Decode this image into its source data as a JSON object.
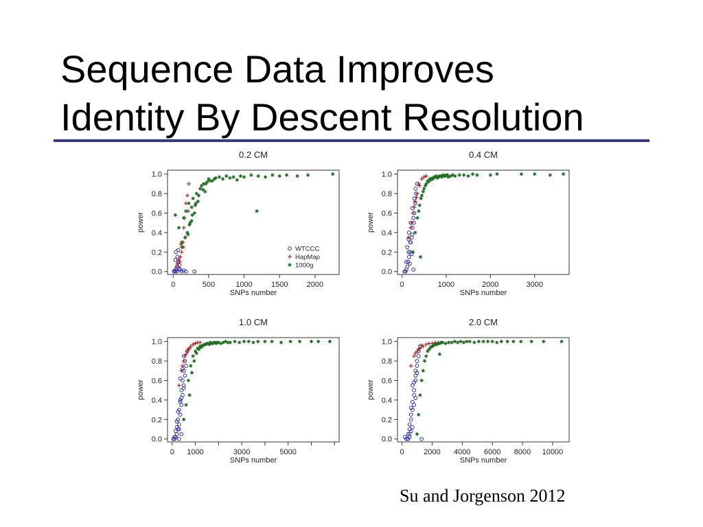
{
  "slide": {
    "title_lines": [
      "Sequence Data Improves",
      "Identity By Descent Resolution"
    ],
    "citation": "Su and Jorgenson 2012",
    "rule_color": "#343a8c"
  },
  "series_styles": {
    "WTCCC": {
      "marker": "circle",
      "color": "#2b2bb0"
    },
    "HapMap": {
      "marker": "plus",
      "color": "#a31a1a"
    },
    "1000g": {
      "marker": "star",
      "color": "#1f6b1f"
    }
  },
  "chart_data": [
    {
      "type": "scatter",
      "title": "0.2 CM",
      "xlabel": "SNPs number",
      "ylabel": "power",
      "xlim": [
        -80,
        2340
      ],
      "ylim": [
        -0.03,
        1.04
      ],
      "xticks": [
        0,
        500,
        1000,
        1500,
        2000
      ],
      "yticks": [
        0.0,
        0.2,
        0.4,
        0.6,
        0.8,
        1.0
      ],
      "yticklabels": [
        "0.0",
        "0.2",
        "0.4",
        "0.6",
        "0.8",
        "1.0"
      ],
      "grid": false,
      "legend": "bottom-right",
      "series": [
        {
          "name": "WTCCC",
          "x": [
            10,
            20,
            30,
            40,
            50,
            60,
            70,
            80,
            100,
            120,
            150,
            180,
            300,
            30,
            60,
            90,
            40,
            70
          ],
          "y": [
            0,
            0.01,
            0,
            0.02,
            0,
            0.05,
            0.1,
            0.03,
            0.02,
            0,
            0.01,
            0,
            0,
            0.12,
            0.15,
            0.07,
            0.2,
            0.22
          ]
        },
        {
          "name": "HapMap",
          "x": [
            40,
            60,
            80,
            100,
            120,
            140,
            150,
            160,
            180,
            200,
            220,
            120,
            170,
            210,
            90,
            110
          ],
          "y": [
            0.05,
            0.08,
            0.12,
            0.15,
            0.25,
            0.3,
            0.45,
            0.55,
            0.7,
            0.78,
            0.9,
            0.2,
            0.35,
            0.62,
            0.1,
            0.28
          ]
        },
        {
          "name": "1000g",
          "x": [
            30,
            80,
            120,
            150,
            180,
            200,
            220,
            240,
            260,
            280,
            300,
            330,
            350,
            380,
            400,
            430,
            450,
            480,
            500,
            550,
            600,
            650,
            700,
            750,
            800,
            850,
            900,
            950,
            1000,
            1100,
            1200,
            1300,
            1400,
            1500,
            1600,
            1750,
            1900,
            2250,
            1180,
            210,
            260,
            310,
            140,
            170,
            230,
            270,
            320,
            360,
            420,
            460,
            520,
            580
          ],
          "y": [
            0.58,
            0.45,
            0.3,
            0.55,
            0.62,
            0.4,
            0.7,
            0.5,
            0.66,
            0.75,
            0.6,
            0.8,
            0.72,
            0.85,
            0.88,
            0.9,
            0.82,
            0.92,
            0.95,
            0.93,
            0.96,
            0.97,
            0.95,
            0.98,
            0.96,
            0.97,
            0.94,
            0.98,
            0.97,
            0.99,
            0.98,
            0.97,
            0.99,
            0.98,
            0.99,
            0.98,
            0.99,
            1.0,
            0.62,
            0.38,
            0.52,
            0.68,
            0.25,
            0.35,
            0.48,
            0.58,
            0.7,
            0.78,
            0.84,
            0.9,
            0.93,
            0.95
          ]
        }
      ]
    },
    {
      "type": "scatter",
      "title": "0.4 CM",
      "xlabel": "SNPs number",
      "ylabel": "power",
      "xlim": [
        -100,
        3780
      ],
      "ylim": [
        -0.03,
        1.04
      ],
      "xticks": [
        0,
        1000,
        2000,
        3000
      ],
      "yticks": [
        0.0,
        0.2,
        0.4,
        0.6,
        0.8,
        1.0
      ],
      "yticklabels": [
        "0.0",
        "0.2",
        "0.4",
        "0.6",
        "0.8",
        "1.0"
      ],
      "grid": false,
      "series": [
        {
          "name": "WTCCC",
          "x": [
            60,
            80,
            100,
            120,
            140,
            160,
            180,
            200,
            220,
            240,
            260,
            280,
            300,
            320,
            340,
            120,
            160,
            200,
            240,
            280,
            100,
            150,
            190,
            230,
            270,
            310,
            180,
            220,
            260,
            150
          ],
          "y": [
            0,
            0,
            0.02,
            0.05,
            0.1,
            0.15,
            0.2,
            0.3,
            0.35,
            0.45,
            0.55,
            0.6,
            0.7,
            0.8,
            0.9,
            0.25,
            0.4,
            0.5,
            0.65,
            0.75,
            0.1,
            0.2,
            0.3,
            0.38,
            0.5,
            0.85,
            0.08,
            0.18,
            0.02,
            0.33
          ]
        },
        {
          "name": "HapMap",
          "x": [
            150,
            200,
            250,
            300,
            350,
            400,
            450,
            500,
            550,
            220,
            280,
            330,
            380
          ],
          "y": [
            0.35,
            0.45,
            0.6,
            0.72,
            0.8,
            0.88,
            0.95,
            0.97,
            0.98,
            0.5,
            0.66,
            0.76,
            0.9
          ]
        },
        {
          "name": "1000g",
          "x": [
            250,
            300,
            350,
            400,
            450,
            500,
            550,
            600,
            650,
            700,
            750,
            800,
            850,
            900,
            950,
            1000,
            1050,
            1100,
            1150,
            1200,
            1300,
            1400,
            1500,
            1600,
            1700,
            2000,
            2150,
            2700,
            3000,
            3350,
            3650,
            380,
            430,
            480,
            530,
            580,
            630,
            680,
            730,
            780,
            830,
            880,
            930,
            980,
            1030,
            420
          ],
          "y": [
            0.2,
            0.4,
            0.55,
            0.68,
            0.78,
            0.85,
            0.9,
            0.92,
            0.94,
            0.95,
            0.97,
            0.96,
            0.98,
            0.97,
            0.98,
            0.99,
            0.97,
            0.98,
            0.99,
            0.98,
            0.99,
            0.99,
            0.98,
            1.0,
            0.99,
            0.99,
            1.0,
            1.0,
            1.0,
            0.99,
            1.0,
            0.62,
            0.75,
            0.82,
            0.88,
            0.93,
            0.95,
            0.96,
            0.97,
            0.98,
            0.97,
            0.98,
            0.99,
            0.98,
            0.99,
            0.15
          ]
        }
      ]
    },
    {
      "type": "scatter",
      "title": "1.0 CM",
      "xlabel": "SNPs number",
      "ylabel": "power",
      "xlim": [
        -200,
        7200
      ],
      "ylim": [
        -0.03,
        1.04
      ],
      "xticks": [
        0,
        1000,
        2000,
        3000,
        4000,
        5000,
        6000,
        7000
      ],
      "xticklabels": [
        "0",
        "1000",
        "",
        "3000",
        "",
        "5000",
        "",
        ""
      ],
      "yticks": [
        0.0,
        0.2,
        0.4,
        0.6,
        0.8,
        1.0
      ],
      "yticklabels": [
        "0.0",
        "0.2",
        "0.4",
        "0.6",
        "0.8",
        "1.0"
      ],
      "grid": false,
      "series": [
        {
          "name": "WTCCC",
          "x": [
            50,
            100,
            150,
            200,
            250,
            300,
            350,
            400,
            450,
            500,
            550,
            600,
            650,
            150,
            200,
            250,
            300,
            350,
            400,
            450,
            500,
            550,
            100,
            200,
            300,
            400,
            500,
            300,
            400,
            500,
            350,
            450,
            250,
            350
          ],
          "y": [
            0,
            0,
            0.02,
            0.05,
            0.1,
            0.15,
            0.25,
            0.35,
            0.45,
            0.55,
            0.65,
            0.75,
            0.9,
            0.08,
            0.12,
            0.2,
            0.3,
            0.4,
            0.5,
            0.6,
            0.7,
            0.8,
            0.02,
            0.18,
            0.1,
            0.42,
            0.85,
            0,
            0.05,
            0.52,
            0.62,
            0.72,
            0.28,
            0.38
          ]
        },
        {
          "name": "HapMap",
          "x": [
            300,
            400,
            500,
            600,
            700,
            800,
            900,
            1000,
            1100,
            1200,
            450,
            550,
            650,
            750
          ],
          "y": [
            0.55,
            0.7,
            0.8,
            0.87,
            0.92,
            0.95,
            0.97,
            0.98,
            0.99,
            0.99,
            0.75,
            0.85,
            0.9,
            0.93
          ]
        },
        {
          "name": "1000g",
          "x": [
            500,
            600,
            700,
            800,
            900,
            1000,
            1100,
            1200,
            1300,
            1400,
            1500,
            1600,
            1700,
            1800,
            1900,
            2000,
            2100,
            2200,
            2300,
            2400,
            2500,
            2700,
            2900,
            3100,
            3300,
            3500,
            3700,
            4000,
            4300,
            4700,
            5100,
            5500,
            6000,
            6300,
            6800,
            750,
            850,
            950,
            1050,
            1150,
            1250,
            1350,
            1450,
            1550,
            1650,
            1750,
            1850,
            1950
          ],
          "y": [
            0.2,
            0.35,
            0.6,
            0.75,
            0.85,
            0.9,
            0.93,
            0.95,
            0.96,
            0.97,
            0.98,
            0.97,
            0.98,
            0.99,
            0.98,
            0.99,
            0.98,
            0.99,
            1.0,
            0.99,
            0.99,
            1.0,
            0.99,
            1.0,
            1.0,
            0.99,
            1.0,
            1.0,
            1.0,
            0.99,
            1.0,
            1.0,
            1.0,
            1.0,
            1.0,
            0.45,
            0.68,
            0.8,
            0.88,
            0.92,
            0.94,
            0.96,
            0.97,
            0.98,
            0.99,
            0.98,
            0.99,
            0.99
          ]
        }
      ]
    },
    {
      "type": "scatter",
      "title": "2.0 CM",
      "xlabel": "SNPs number",
      "ylabel": "power",
      "xlim": [
        -300,
        11100
      ],
      "ylim": [
        -0.03,
        1.04
      ],
      "xticks": [
        0,
        2000,
        4000,
        6000,
        8000,
        10000
      ],
      "yticks": [
        0.0,
        0.2,
        0.4,
        0.6,
        0.8,
        1.0
      ],
      "yticklabels": [
        "0.0",
        "0.2",
        "0.4",
        "0.6",
        "0.8",
        "1.0"
      ],
      "grid": false,
      "series": [
        {
          "name": "WTCCC",
          "x": [
            200,
            300,
            400,
            500,
            600,
            700,
            800,
            900,
            1000,
            1100,
            1200,
            500,
            600,
            700,
            800,
            900,
            1000,
            400,
            500,
            600,
            700,
            800,
            900,
            300,
            1300,
            1100,
            900,
            700,
            600,
            800,
            1000,
            500
          ],
          "y": [
            0.02,
            0,
            0.05,
            0.1,
            0.2,
            0.3,
            0.45,
            0.6,
            0.75,
            0.85,
            0.95,
            0.15,
            0.25,
            0.38,
            0.5,
            0.65,
            0.8,
            0,
            0.02,
            0.08,
            0.12,
            0.35,
            0.42,
            0,
            0,
            0.9,
            0.7,
            0.55,
            0.32,
            0.58,
            0.68,
            0.05
          ]
        },
        {
          "name": "HapMap",
          "x": [
            600,
            800,
            1000,
            1200,
            1400,
            1600,
            1800,
            2000,
            2200,
            2400,
            900,
            1100,
            1300
          ],
          "y": [
            0.75,
            0.85,
            0.9,
            0.93,
            0.95,
            0.97,
            0.98,
            0.98,
            0.99,
            0.99,
            0.88,
            0.92,
            0.96
          ]
        },
        {
          "name": "1000g",
          "x": [
            1100,
            1300,
            1500,
            1700,
            1900,
            2100,
            2300,
            2500,
            2700,
            2900,
            3100,
            3300,
            3500,
            3700,
            3900,
            4100,
            4300,
            4500,
            4800,
            5100,
            5400,
            5700,
            6000,
            6300,
            6600,
            7000,
            7400,
            7900,
            8600,
            9400,
            10600,
            1000,
            1200,
            1400,
            1600,
            1800,
            2000,
            2200,
            2400,
            2600,
            2500
          ],
          "y": [
            0.25,
            0.6,
            0.8,
            0.9,
            0.94,
            0.96,
            0.97,
            0.98,
            0.99,
            0.98,
            0.99,
            0.99,
            1.0,
            0.99,
            1.0,
            0.99,
            1.0,
            1.0,
            0.99,
            1.0,
            1.0,
            1.0,
            1.0,
            0.99,
            1.0,
            1.0,
            1.0,
            1.0,
            1.0,
            1.0,
            1.0,
            0.05,
            0.45,
            0.7,
            0.85,
            0.92,
            0.95,
            0.97,
            0.98,
            0.99,
            0.87
          ]
        }
      ]
    }
  ]
}
